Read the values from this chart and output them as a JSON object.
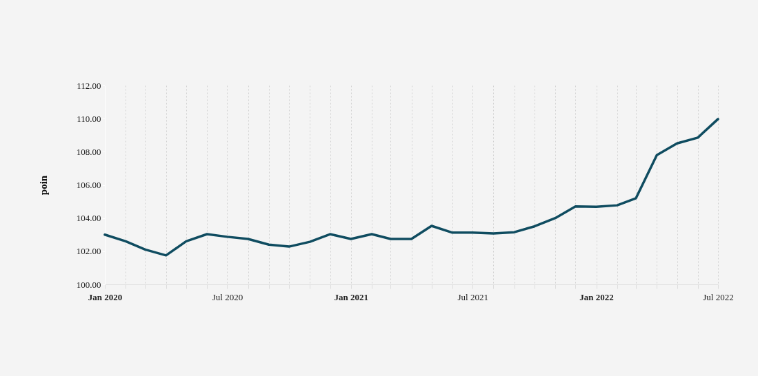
{
  "chart_data": {
    "type": "line",
    "ylabel": "poin",
    "x": [
      "2020-01",
      "2020-02",
      "2020-03",
      "2020-04",
      "2020-05",
      "2020-06",
      "2020-07",
      "2020-08",
      "2020-09",
      "2020-10",
      "2020-11",
      "2020-12",
      "2021-01",
      "2021-02",
      "2021-03",
      "2021-04",
      "2021-05",
      "2021-06",
      "2021-07",
      "2021-08",
      "2021-09",
      "2021-10",
      "2021-11",
      "2021-12",
      "2022-01",
      "2022-02",
      "2022-03",
      "2022-04",
      "2022-05",
      "2022-06",
      "2022-07"
    ],
    "series": [
      {
        "color": "#0f4c60",
        "values": [
          103.0,
          102.6,
          102.1,
          101.75,
          102.6,
          103.03,
          102.87,
          102.74,
          102.4,
          102.28,
          102.57,
          103.03,
          102.74,
          103.03,
          102.74,
          102.74,
          103.53,
          103.12,
          103.12,
          103.07,
          103.15,
          103.5,
          104.0,
          104.7,
          104.68,
          104.77,
          105.2,
          107.8,
          108.5,
          108.85,
          109.97
        ]
      }
    ],
    "xlim": [
      "2020-01",
      "2022-07"
    ],
    "xticks": [
      {
        "value": "2020-01",
        "label": "Jan 2020"
      },
      {
        "value": "2020-02",
        "label": null
      },
      {
        "value": "2020-03",
        "label": null
      },
      {
        "value": "2020-04",
        "label": null
      },
      {
        "value": "2020-05",
        "label": null
      },
      {
        "value": "2020-06",
        "label": null
      },
      {
        "value": "2020-07",
        "label": "Jul 2020"
      },
      {
        "value": "2020-08",
        "label": null
      },
      {
        "value": "2020-09",
        "label": null
      },
      {
        "value": "2020-10",
        "label": null
      },
      {
        "value": "2020-11",
        "label": null
      },
      {
        "value": "2020-12",
        "label": null
      },
      {
        "value": "2021-01",
        "label": "Jan 2021"
      },
      {
        "value": "2021-02",
        "label": null
      },
      {
        "value": "2021-03",
        "label": null
      },
      {
        "value": "2021-04",
        "label": null
      },
      {
        "value": "2021-05",
        "label": null
      },
      {
        "value": "2021-06",
        "label": null
      },
      {
        "value": "2021-07",
        "label": "Jul 2021"
      },
      {
        "value": "2021-08",
        "label": null
      },
      {
        "value": "2021-09",
        "label": null
      },
      {
        "value": "2021-10",
        "label": null
      },
      {
        "value": "2021-11",
        "label": null
      },
      {
        "value": "2021-12",
        "label": null
      },
      {
        "value": "2022-01",
        "label": "Jan 2022"
      },
      {
        "value": "2022-02",
        "label": null
      },
      {
        "value": "2022-03",
        "label": null
      },
      {
        "value": "2022-04",
        "label": null
      },
      {
        "value": "2022-05",
        "label": null
      },
      {
        "value": "2022-06",
        "label": null
      },
      {
        "value": "2022-07",
        "label": "Jul 2022"
      }
    ],
    "ylim": [
      100,
      112
    ],
    "yticks": [
      {
        "value": 100,
        "label": "100.00"
      },
      {
        "value": 102,
        "label": "102.00"
      },
      {
        "value": 104,
        "label": "104.00"
      },
      {
        "value": 106,
        "label": "106.00"
      },
      {
        "value": 108,
        "label": "108.00"
      },
      {
        "value": 110,
        "label": "110.00"
      },
      {
        "value": 112,
        "label": "112.00"
      }
    ],
    "grid": "x",
    "marker": "none",
    "line_style": "solid"
  }
}
